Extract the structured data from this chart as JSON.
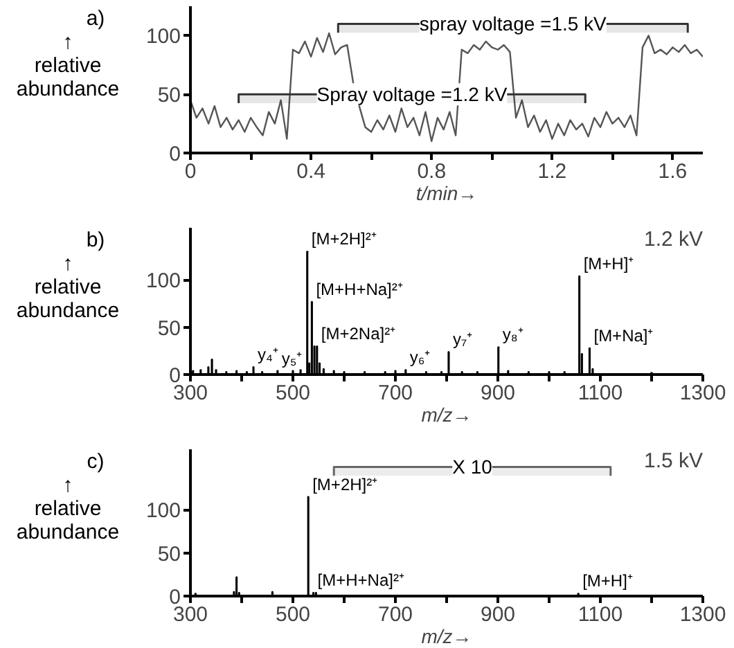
{
  "chart_data": [
    {
      "type": "line",
      "title": "a)",
      "ylabel": "↑\nrelative abundance",
      "xlabel": "t/min→",
      "xlim": [
        0,
        1.7
      ],
      "ylim": [
        0,
        125
      ],
      "xticks": [
        0,
        {
          "value": 0.2,
          "label": null
        },
        0.4,
        {
          "value": 0.6,
          "label": null
        },
        0.8,
        {
          "value": 1.0,
          "label": null
        },
        1.2,
        {
          "value": 1.4,
          "label": null
        },
        1.6
      ],
      "yticks": [
        0,
        50,
        100
      ],
      "series": [
        {
          "color": "#555555",
          "x": [
            0,
            0.02,
            0.04,
            0.06,
            0.08,
            0.1,
            0.12,
            0.14,
            0.16,
            0.18,
            0.2,
            0.22,
            0.24,
            0.26,
            0.28,
            0.3,
            0.32,
            0.34,
            0.36,
            0.38,
            0.4,
            0.42,
            0.44,
            0.46,
            0.48,
            0.5,
            0.52,
            0.54,
            0.56,
            0.58,
            0.6,
            0.62,
            0.64,
            0.66,
            0.68,
            0.7,
            0.72,
            0.74,
            0.76,
            0.78,
            0.8,
            0.82,
            0.84,
            0.86,
            0.88,
            0.9,
            0.92,
            0.94,
            0.96,
            0.98,
            1.0,
            1.02,
            1.04,
            1.06,
            1.08,
            1.1,
            1.12,
            1.14,
            1.16,
            1.18,
            1.2,
            1.22,
            1.24,
            1.26,
            1.28,
            1.3,
            1.32,
            1.34,
            1.36,
            1.38,
            1.4,
            1.42,
            1.44,
            1.46,
            1.48,
            1.5,
            1.52,
            1.54,
            1.56,
            1.58,
            1.6,
            1.62,
            1.64,
            1.66,
            1.68,
            1.7
          ],
          "values": [
            45,
            30,
            38,
            25,
            40,
            22,
            30,
            20,
            28,
            18,
            30,
            22,
            15,
            35,
            25,
            45,
            12,
            88,
            85,
            95,
            82,
            98,
            86,
            102,
            84,
            90,
            92,
            60,
            40,
            22,
            18,
            28,
            20,
            32,
            18,
            38,
            22,
            30,
            15,
            35,
            10,
            30,
            20,
            35,
            15,
            88,
            85,
            92,
            88,
            95,
            90,
            88,
            92,
            86,
            30,
            45,
            22,
            32,
            18,
            28,
            12,
            25,
            15,
            28,
            20,
            25,
            14,
            30,
            22,
            35,
            25,
            30,
            22,
            32,
            15,
            90,
            100,
            85,
            88,
            84,
            90,
            86,
            92,
            85,
            88,
            82
          ]
        }
      ],
      "bands": [
        {
          "axis": "x",
          "from": 0.49,
          "to": 1.65,
          "label": "spray voltage =1.5 kV"
        },
        {
          "axis": "x",
          "from": 0.16,
          "to": 1.31,
          "label": "Spray voltage =1.2 kV"
        }
      ]
    },
    {
      "type": "bar",
      "title": "b)",
      "ylabel": "↑\nrelative abundance",
      "xlabel": "m/z→",
      "xlim": [
        300,
        1300
      ],
      "ylim": [
        0,
        155
      ],
      "xticks": [
        300,
        {
          "value": 400,
          "label": null
        },
        500,
        {
          "value": 600,
          "label": null
        },
        700,
        {
          "value": 800,
          "label": null
        },
        900,
        {
          "value": 1000,
          "label": null
        },
        1100,
        {
          "value": 1200,
          "label": null
        },
        1300
      ],
      "yticks": [
        0,
        50,
        100
      ],
      "series": [
        {
          "color": "#000000",
          "x": [
            305,
            320,
            335,
            342,
            350,
            370,
            390,
            410,
            423,
            440,
            470,
            500,
            515,
            528,
            532,
            537,
            542,
            547,
            552,
            560,
            580,
            600,
            640,
            680,
            700,
            720,
            760,
            790,
            804,
            830,
            860,
            901,
            920,
            960,
            1000,
            1030,
            1059,
            1064,
            1079,
            1085,
            1200
          ],
          "values": [
            4,
            5,
            8,
            16,
            5,
            3,
            4,
            3,
            8,
            3,
            4,
            4,
            5,
            130,
            12,
            77,
            30,
            30,
            12,
            6,
            4,
            3,
            3,
            3,
            4,
            5,
            3,
            3,
            24,
            3,
            3,
            29,
            4,
            3,
            3,
            3,
            104,
            22,
            28,
            6,
            2
          ]
        }
      ],
      "annotations": [
        "1.2 kV",
        {
          "text": "[M+2H]²⁺",
          "x": 528,
          "y": 130
        },
        {
          "text": "[M+H+Na]²⁺",
          "x": 537,
          "y": 77
        },
        {
          "text": "[M+2Na]²⁺",
          "x": 547,
          "y": 30
        },
        {
          "text": "y₄⁺",
          "x": 423,
          "y": 8
        },
        {
          "text": "y₅⁺",
          "x": 470,
          "y": 4
        },
        {
          "text": "y₆⁺",
          "x": 720,
          "y": 5
        },
        {
          "text": "y₇⁺",
          "x": 804,
          "y": 24
        },
        {
          "text": "y₈⁺",
          "x": 901,
          "y": 29
        },
        {
          "text": "[M+H]⁺",
          "x": 1059,
          "y": 104
        },
        {
          "text": "[M+Na]⁺",
          "x": 1079,
          "y": 28
        }
      ]
    },
    {
      "type": "bar",
      "title": "c)",
      "ylabel": "↑\nrelative abundance",
      "xlabel": "m/z→",
      "xlim": [
        300,
        1300
      ],
      "ylim": [
        0,
        170
      ],
      "xticks": [
        300,
        {
          "value": 400,
          "label": null
        },
        500,
        {
          "value": 600,
          "label": null
        },
        700,
        {
          "value": 800,
          "label": null
        },
        900,
        {
          "value": 1000,
          "label": null
        },
        1100,
        {
          "value": 1200,
          "label": null
        },
        1300
      ],
      "yticks": [
        0,
        50,
        100
      ],
      "series": [
        {
          "color": "#000000",
          "x": [
            310,
            385,
            390,
            395,
            460,
            530,
            540,
            545,
            1057
          ],
          "values": [
            3,
            5,
            22,
            4,
            5,
            115,
            4,
            4,
            3
          ]
        }
      ],
      "bands": [
        {
          "axis": "x",
          "from": 580,
          "to": 1120,
          "label": "X 10",
          "color": "#666666"
        }
      ],
      "annotations": [
        "1.5 kV",
        {
          "text": "[M+2H]²⁺",
          "x": 530,
          "y": 115
        },
        {
          "text": "[M+H+Na]²⁺",
          "x": 540,
          "y": 4
        },
        {
          "text": "[M+H]⁺",
          "x": 1057,
          "y": 3
        }
      ]
    }
  ]
}
